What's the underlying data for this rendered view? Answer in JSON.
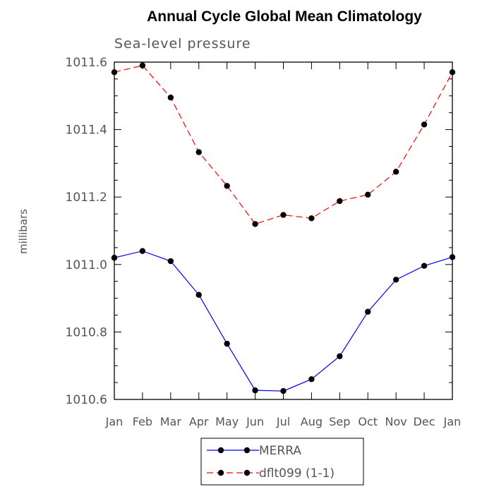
{
  "chart_data": {
    "type": "line",
    "title": "Annual Cycle Global Mean Climatology",
    "subtitle": "Sea-level pressure",
    "ylabel": "millibars",
    "xlabel": "",
    "categories": [
      "Jan",
      "Feb",
      "Mar",
      "Apr",
      "May",
      "Jun",
      "Jul",
      "Aug",
      "Sep",
      "Oct",
      "Nov",
      "Dec",
      "Jan"
    ],
    "ylim": [
      1010.6,
      1011.6
    ],
    "yticks": [
      "1010.6",
      "1010.8",
      "1011.0",
      "1011.2",
      "1011.4",
      "1011.6"
    ],
    "series": [
      {
        "name": "MERRA",
        "color": "#0000ff",
        "line_style": "solid",
        "values": [
          1011.02,
          1011.04,
          1011.01,
          1010.91,
          1010.765,
          1010.627,
          1010.625,
          1010.66,
          1010.728,
          1010.86,
          1010.955,
          1010.996,
          1011.022
        ]
      },
      {
        "name": "dflt099 (1-1)",
        "color": "#ff0000",
        "line_style": "dashed",
        "values": [
          1011.57,
          1011.59,
          1011.495,
          1011.333,
          1011.233,
          1011.12,
          1011.147,
          1011.137,
          1011.188,
          1011.207,
          1011.275,
          1011.415,
          1011.57
        ]
      }
    ],
    "marker": "filled-circle",
    "grid": false,
    "legend_position": "bottom-center"
  }
}
